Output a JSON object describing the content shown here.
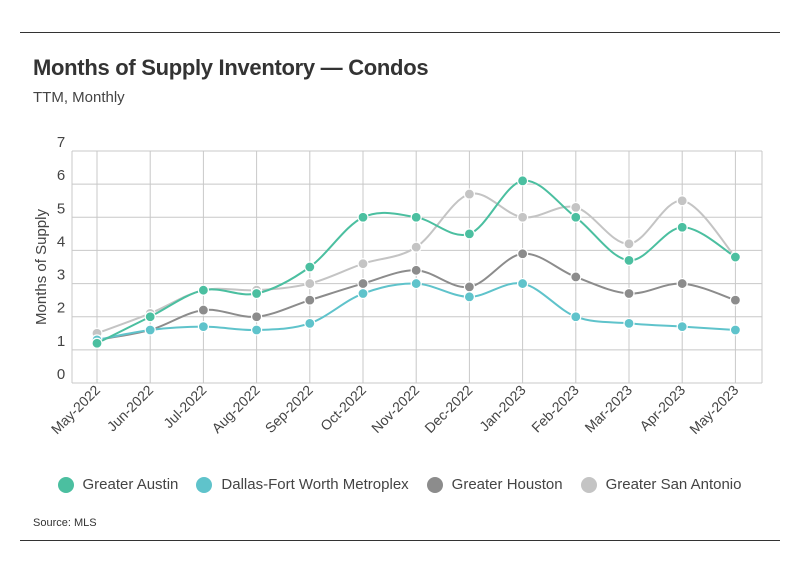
{
  "title": "Months of Supply Inventory — Condos",
  "subtitle": "TTM, Monthly",
  "source": "Source: MLS",
  "chart_data": {
    "type": "line",
    "ylabel": "Months of Supply",
    "xlabel": "",
    "ylim": [
      0,
      7
    ],
    "yticks": [
      "0",
      "1",
      "2",
      "3",
      "4",
      "5",
      "6",
      "7"
    ],
    "grid": true,
    "legend_position": "bottom",
    "categories": [
      "May-2022",
      "Jun-2022",
      "Jul-2022",
      "Aug-2022",
      "Sep-2022",
      "Oct-2022",
      "Nov-2022",
      "Dec-2022",
      "Jan-2023",
      "Feb-2023",
      "Mar-2023",
      "Apr-2023",
      "May-2023"
    ],
    "series": [
      {
        "name": "Greater Austin",
        "color": "#4bbfa0",
        "values": [
          1.2,
          2.0,
          2.8,
          2.7,
          3.5,
          5.0,
          5.0,
          4.5,
          6.1,
          5.0,
          3.7,
          4.7,
          3.8
        ]
      },
      {
        "name": "Dallas-Fort Worth Metroplex",
        "color": "#5fc3cb",
        "values": [
          1.3,
          1.6,
          1.7,
          1.6,
          1.8,
          2.7,
          3.0,
          2.6,
          3.0,
          2.0,
          1.8,
          1.7,
          1.6
        ]
      },
      {
        "name": "Greater Houston",
        "color": "#8c8c8c",
        "values": [
          1.3,
          1.6,
          2.2,
          2.0,
          2.5,
          3.0,
          3.4,
          2.9,
          3.9,
          3.2,
          2.7,
          3.0,
          2.5
        ]
      },
      {
        "name": "Greater San Antonio",
        "color": "#c4c4c4",
        "values": [
          1.5,
          2.1,
          2.8,
          2.8,
          3.0,
          3.6,
          4.1,
          5.7,
          5.0,
          5.3,
          4.2,
          5.5,
          3.8
        ]
      }
    ]
  }
}
